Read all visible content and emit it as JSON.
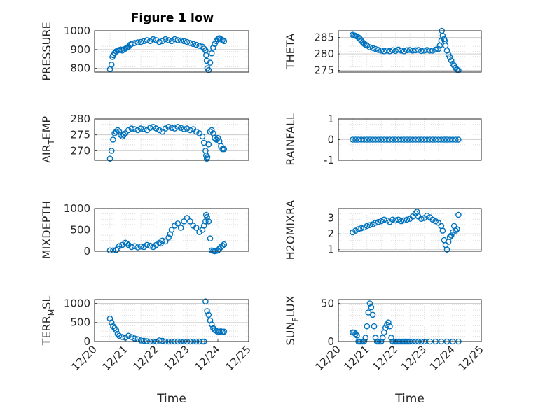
{
  "figure": {
    "title": "Figure 1 low",
    "marker_color": "#0072bd"
  },
  "chart_data": [
    {
      "type": "scatter",
      "ylabel": "PRESSURE",
      "title": "Figure 1 low",
      "xlim": [
        0,
        5
      ],
      "ylim": [
        780,
        1000
      ],
      "xticks": [],
      "yticks": [
        800,
        900,
        1000
      ],
      "yticklabels": [
        "800",
        "900",
        "1000"
      ],
      "x": [
        0.5,
        0.55,
        0.58,
        0.61,
        0.65,
        0.7,
        0.75,
        0.8,
        0.85,
        0.9,
        0.95,
        1.0,
        1.05,
        1.1,
        1.15,
        1.2,
        1.3,
        1.4,
        1.5,
        1.6,
        1.7,
        1.8,
        1.9,
        2.0,
        2.1,
        2.2,
        2.3,
        2.4,
        2.5,
        2.6,
        2.7,
        2.8,
        2.9,
        3.0,
        3.1,
        3.2,
        3.3,
        3.4,
        3.5,
        3.55,
        3.6,
        3.62,
        3.64,
        3.66,
        3.7,
        3.75,
        3.8,
        3.85,
        3.9,
        3.95,
        4.0,
        4.05,
        4.1,
        4.15,
        4.2
      ],
      "y": [
        795,
        820,
        860,
        870,
        880,
        890,
        895,
        898,
        900,
        895,
        900,
        905,
        910,
        915,
        925,
        930,
        935,
        938,
        940,
        945,
        950,
        945,
        955,
        950,
        940,
        945,
        955,
        950,
        945,
        955,
        950,
        948,
        945,
        940,
        935,
        930,
        925,
        920,
        915,
        905,
        895,
        870,
        840,
        800,
        790,
        830,
        880,
        910,
        930,
        945,
        955,
        960,
        955,
        950,
        945
      ]
    },
    {
      "type": "scatter",
      "ylabel": "THETA",
      "xlim": [
        0,
        5
      ],
      "ylim": [
        274.5,
        287
      ],
      "xticks": [],
      "yticks": [
        275,
        280,
        285
      ],
      "yticklabels": [
        "275",
        "280",
        "285"
      ],
      "x": [
        0.5,
        0.55,
        0.6,
        0.65,
        0.7,
        0.75,
        0.8,
        0.85,
        0.9,
        0.95,
        1.0,
        1.1,
        1.2,
        1.3,
        1.4,
        1.5,
        1.6,
        1.7,
        1.8,
        1.9,
        2.0,
        2.1,
        2.2,
        2.3,
        2.4,
        2.5,
        2.6,
        2.7,
        2.8,
        2.9,
        3.0,
        3.1,
        3.2,
        3.3,
        3.4,
        3.5,
        3.55,
        3.6,
        3.62,
        3.65,
        3.7,
        3.72,
        3.75,
        3.8,
        3.85,
        3.9,
        3.95,
        4.0,
        4.05,
        4.1,
        4.15,
        4.2
      ],
      "y": [
        285.8,
        285.6,
        285.5,
        285.3,
        285.0,
        284.6,
        284.0,
        283.5,
        283.1,
        282.8,
        282.5,
        282.0,
        281.8,
        281.5,
        281.2,
        281.0,
        280.8,
        281.0,
        280.8,
        281.1,
        280.9,
        281.3,
        281.0,
        280.8,
        281.1,
        281.2,
        281.0,
        281.1,
        281.2,
        280.9,
        281.0,
        281.2,
        281.0,
        281.0,
        281.3,
        281.5,
        282.5,
        284.0,
        287.0,
        285.5,
        284.5,
        284.0,
        282.5,
        281.0,
        279.8,
        279.0,
        278.0,
        277.0,
        276.5,
        275.8,
        275.2,
        275.0
      ]
    },
    {
      "type": "scatter",
      "ylabel": "AIR_TEMP",
      "xlim": [
        0,
        5
      ],
      "ylim": [
        267,
        280
      ],
      "xticks": [],
      "yticks": [
        270,
        275,
        280
      ],
      "yticklabels": [
        "270",
        "275",
        "280"
      ],
      "x": [
        0.5,
        0.55,
        0.6,
        0.65,
        0.7,
        0.75,
        0.8,
        0.85,
        0.9,
        0.95,
        1.0,
        1.1,
        1.2,
        1.3,
        1.4,
        1.5,
        1.6,
        1.7,
        1.8,
        1.9,
        2.0,
        2.1,
        2.2,
        2.3,
        2.4,
        2.5,
        2.6,
        2.7,
        2.8,
        2.9,
        3.0,
        3.1,
        3.2,
        3.3,
        3.4,
        3.5,
        3.55,
        3.6,
        3.62,
        3.64,
        3.66,
        3.7,
        3.75,
        3.8,
        3.85,
        3.9,
        3.95,
        4.0,
        4.05,
        4.1,
        4.15,
        4.2
      ],
      "y": [
        267.5,
        270.0,
        273.5,
        275.5,
        276.0,
        276.5,
        276.0,
        275.0,
        274.5,
        275.0,
        275.5,
        276.5,
        277.0,
        276.8,
        276.5,
        277.0,
        276.8,
        276.5,
        277.2,
        277.5,
        277.0,
        276.5,
        276.0,
        277.0,
        277.5,
        277.2,
        277.0,
        277.5,
        277.2,
        276.8,
        277.0,
        276.5,
        276.8,
        276.0,
        275.5,
        274.5,
        272.5,
        270.0,
        268.5,
        267.5,
        268.0,
        272.0,
        276.0,
        276.5,
        275.5,
        274.0,
        273.5,
        274.0,
        273.0,
        271.5,
        270.5,
        270.5
      ]
    },
    {
      "type": "scatter",
      "ylabel": "RAINFALL",
      "xlim": [
        0,
        5
      ],
      "ylim": [
        -1,
        1
      ],
      "xticks": [],
      "yticks": [
        -1,
        0,
        1
      ],
      "yticklabels": [
        "-1",
        "0",
        "1"
      ],
      "x": [
        0.5,
        0.6,
        0.7,
        0.8,
        0.9,
        1.0,
        1.1,
        1.2,
        1.3,
        1.4,
        1.5,
        1.6,
        1.7,
        1.8,
        1.9,
        2.0,
        2.1,
        2.2,
        2.3,
        2.4,
        2.5,
        2.6,
        2.7,
        2.8,
        2.9,
        3.0,
        3.1,
        3.2,
        3.3,
        3.4,
        3.5,
        3.6,
        3.7,
        3.8,
        3.9,
        4.0,
        4.1,
        4.2
      ],
      "y": [
        0,
        0,
        0,
        0,
        0,
        0,
        0,
        0,
        0,
        0,
        0,
        0,
        0,
        0,
        0,
        0,
        0,
        0,
        0,
        0,
        0,
        0,
        0,
        0,
        0,
        0,
        0,
        0,
        0,
        0,
        0,
        0,
        0,
        0,
        0,
        0,
        0,
        0
      ]
    },
    {
      "type": "scatter",
      "ylabel": "MIXDEPTH",
      "xlim": [
        0,
        5
      ],
      "ylim": [
        0,
        1000
      ],
      "xticks": [],
      "yticks": [
        0,
        500,
        1000
      ],
      "yticklabels": [
        "0",
        "500",
        "1000"
      ],
      "x": [
        0.5,
        0.6,
        0.7,
        0.75,
        0.8,
        0.9,
        1.0,
        1.05,
        1.1,
        1.2,
        1.3,
        1.4,
        1.5,
        1.6,
        1.7,
        1.8,
        1.9,
        2.0,
        2.1,
        2.15,
        2.2,
        2.3,
        2.4,
        2.45,
        2.5,
        2.6,
        2.7,
        2.8,
        2.9,
        3.0,
        3.1,
        3.2,
        3.3,
        3.4,
        3.5,
        3.55,
        3.6,
        3.62,
        3.65,
        3.7,
        3.75,
        3.8,
        3.85,
        3.9,
        3.95,
        4.0,
        4.05,
        4.1,
        4.15,
        4.2
      ],
      "y": [
        20,
        20,
        30,
        60,
        120,
        150,
        200,
        180,
        150,
        100,
        120,
        90,
        110,
        100,
        150,
        130,
        100,
        150,
        200,
        180,
        250,
        230,
        320,
        400,
        500,
        600,
        650,
        550,
        700,
        780,
        700,
        600,
        550,
        450,
        500,
        600,
        700,
        850,
        800,
        700,
        300,
        20,
        10,
        0,
        10,
        20,
        60,
        100,
        130,
        160
      ]
    },
    {
      "type": "scatter",
      "ylabel": "H2OMIXRA",
      "xlim": [
        0,
        5
      ],
      "ylim": [
        0.9,
        3.6
      ],
      "xticks": [],
      "yticks": [
        1,
        2,
        3
      ],
      "yticklabels": [
        "1",
        "2",
        "3"
      ],
      "x": [
        0.5,
        0.6,
        0.7,
        0.8,
        0.9,
        1.0,
        1.1,
        1.2,
        1.3,
        1.4,
        1.5,
        1.6,
        1.7,
        1.8,
        1.9,
        2.0,
        2.1,
        2.2,
        2.3,
        2.4,
        2.5,
        2.6,
        2.7,
        2.75,
        2.8,
        2.9,
        3.0,
        3.1,
        3.2,
        3.3,
        3.4,
        3.5,
        3.6,
        3.65,
        3.7,
        3.75,
        3.8,
        3.85,
        3.9,
        3.95,
        4.0,
        4.05,
        4.1,
        4.15,
        4.2
      ],
      "y": [
        2.1,
        2.2,
        2.3,
        2.35,
        2.4,
        2.5,
        2.55,
        2.6,
        2.7,
        2.75,
        2.8,
        2.9,
        2.85,
        2.75,
        2.9,
        2.85,
        2.9,
        2.8,
        2.85,
        2.9,
        2.95,
        3.1,
        3.3,
        3.4,
        3.1,
        2.95,
        3.0,
        3.15,
        3.05,
        2.9,
        2.8,
        2.7,
        2.5,
        2.2,
        1.6,
        1.3,
        1.0,
        1.5,
        1.8,
        1.9,
        2.1,
        2.5,
        2.2,
        2.3,
        3.2
      ]
    },
    {
      "type": "scatter",
      "ylabel": "TERR_MSL",
      "xlim": [
        0,
        5
      ],
      "ylim": [
        0,
        1100
      ],
      "xticks": [
        0,
        1,
        2,
        3,
        4,
        5
      ],
      "xticklabels": [
        "12/20",
        "12/21",
        "12/22",
        "12/23",
        "12/24",
        "12/25"
      ],
      "xlabel": "Time",
      "yticks": [
        0,
        500,
        1000
      ],
      "yticklabels": [
        "0",
        "500",
        "1000"
      ],
      "x": [
        0.5,
        0.55,
        0.6,
        0.65,
        0.7,
        0.75,
        0.8,
        0.9,
        1.0,
        1.1,
        1.2,
        1.3,
        1.4,
        1.5,
        1.6,
        1.7,
        1.8,
        1.9,
        2.0,
        2.1,
        2.2,
        2.3,
        2.4,
        2.5,
        2.6,
        2.7,
        2.8,
        2.9,
        3.0,
        3.1,
        3.2,
        3.3,
        3.4,
        3.5,
        3.55,
        3.6,
        3.65,
        3.7,
        3.75,
        3.8,
        3.85,
        3.9,
        3.95,
        4.0,
        4.05,
        4.1,
        4.15,
        4.2
      ],
      "y": [
        600,
        500,
        400,
        350,
        300,
        200,
        150,
        120,
        100,
        150,
        120,
        80,
        60,
        30,
        20,
        10,
        0,
        0,
        0,
        30,
        20,
        0,
        0,
        0,
        0,
        0,
        0,
        0,
        0,
        0,
        0,
        0,
        0,
        0,
        0,
        1050,
        800,
        700,
        550,
        450,
        350,
        300,
        280,
        250,
        260,
        270,
        250,
        260
      ]
    },
    {
      "type": "scatter",
      "ylabel": "SUN_FLUX",
      "xlim": [
        0,
        5
      ],
      "ylim": [
        0,
        55
      ],
      "xticks": [
        0,
        1,
        2,
        3,
        4,
        5
      ],
      "xticklabels": [
        "12/20",
        "12/21",
        "12/22",
        "12/23",
        "12/24",
        "12/25"
      ],
      "xlabel": "Time",
      "yticks": [
        0,
        50
      ],
      "yticklabels": [
        "0",
        "50"
      ],
      "x": [
        0.5,
        0.55,
        0.6,
        0.65,
        0.7,
        0.75,
        0.8,
        0.85,
        0.9,
        0.95,
        1.0,
        1.05,
        1.1,
        1.15,
        1.2,
        1.25,
        1.3,
        1.35,
        1.4,
        1.45,
        1.5,
        1.55,
        1.6,
        1.65,
        1.7,
        1.75,
        1.8,
        1.85,
        1.9,
        1.95,
        2.0,
        2.05,
        2.1,
        2.15,
        2.2,
        2.25,
        2.3,
        2.35,
        2.4,
        2.45,
        2.5,
        2.6,
        2.7,
        2.8,
        2.9,
        3.0,
        3.2,
        3.4,
        3.6,
        3.8,
        4.0,
        4.2
      ],
      "y": [
        12,
        12,
        10,
        8,
        0,
        0,
        0,
        0,
        0,
        5,
        20,
        38,
        50,
        45,
        35,
        20,
        5,
        0,
        0,
        0,
        0,
        5,
        12,
        18,
        22,
        25,
        20,
        5,
        0,
        0,
        0,
        0,
        0,
        0,
        0,
        0,
        0,
        0,
        0,
        0,
        0,
        0,
        0,
        0,
        0,
        0,
        0,
        0,
        0,
        0,
        0,
        0
      ]
    }
  ]
}
